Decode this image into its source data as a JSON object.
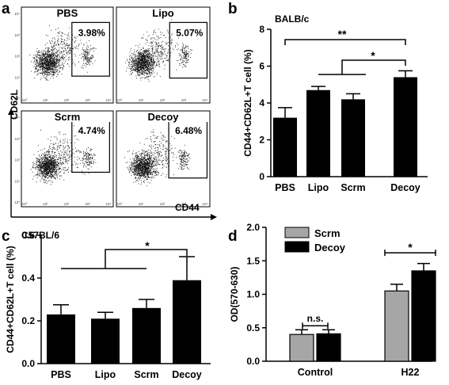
{
  "panels": {
    "a": {
      "letter": "a",
      "ylabel": "CD62L",
      "xlabel": "CD44",
      "plots": [
        {
          "name": "PBS",
          "gate_pct": "3.98%"
        },
        {
          "name": "Lipo",
          "gate_pct": "5.07%"
        },
        {
          "name": "Scrm",
          "gate_pct": "4.74%"
        },
        {
          "name": "Decoy",
          "gate_pct": "6.48%"
        }
      ],
      "xticks": [
        "10⁰",
        "10¹",
        "10²",
        "10³",
        "10⁴"
      ]
    },
    "b": {
      "letter": "b"
    },
    "c": {
      "letter": "c"
    },
    "d": {
      "letter": "d"
    }
  },
  "chart_data": [
    {
      "panel": "b",
      "type": "bar",
      "title": "BALB/c",
      "ylabel": "CD44+CD62L+T cell (%)",
      "categories": [
        "PBS",
        "Lipo",
        "Scrm",
        "Decoy"
      ],
      "values": [
        3.2,
        4.7,
        4.2,
        5.4
      ],
      "errors": [
        0.55,
        0.2,
        0.3,
        0.35
      ],
      "ylim": [
        0,
        8
      ],
      "yticks": [
        "0",
        "2",
        "4",
        "6",
        "8"
      ],
      "color": "#000000",
      "significance": [
        {
          "label": "**",
          "from": "PBS",
          "to": "Decoy"
        },
        {
          "label": "*",
          "from": "Lipo-Scrm",
          "to": "Decoy"
        }
      ]
    },
    {
      "panel": "c",
      "type": "bar",
      "title": "C57BL/6",
      "ylabel": "CD44+CD62L+T cell (%)",
      "categories": [
        "PBS",
        "Lipo",
        "Scrm",
        "Decoy"
      ],
      "values": [
        0.23,
        0.21,
        0.26,
        0.39
      ],
      "errors": [
        0.045,
        0.03,
        0.04,
        0.11
      ],
      "ylim": [
        0,
        0.6
      ],
      "yticks": [
        "0.0",
        "0.2",
        "0.4",
        "0.6"
      ],
      "color": "#000000",
      "significance": [
        {
          "label": "*",
          "from": "PBS-Scrm",
          "to": "Decoy"
        }
      ]
    },
    {
      "panel": "d",
      "type": "bar",
      "ylabel": "OD(570-630)",
      "categories": [
        "Control",
        "H22"
      ],
      "series": [
        {
          "name": "Scrm",
          "values": [
            0.4,
            1.05
          ],
          "errors": [
            0.07,
            0.1
          ],
          "color": "#a6a6a6"
        },
        {
          "name": "Decoy",
          "values": [
            0.41,
            1.35
          ],
          "errors": [
            0.06,
            0.11
          ],
          "color": "#000000"
        }
      ],
      "ylim": [
        0,
        2.0
      ],
      "yticks": [
        "0.0",
        "0.5",
        "1.0",
        "1.5",
        "2.0"
      ],
      "legend": "top-left",
      "significance": [
        {
          "label": "n.s.",
          "category": "Control"
        },
        {
          "label": "*",
          "category": "H22"
        }
      ]
    }
  ]
}
